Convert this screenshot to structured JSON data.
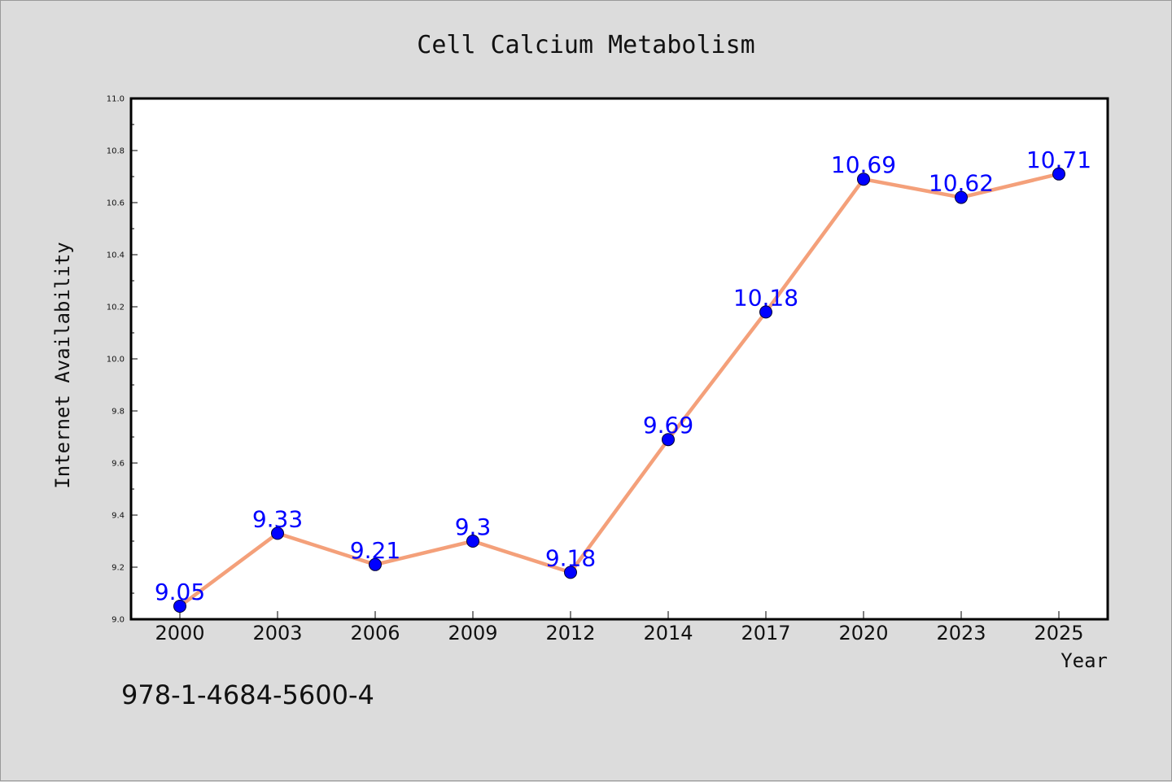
{
  "chart_data": {
    "type": "line",
    "title": "Cell Calcium Metabolism",
    "xlabel": "Year",
    "ylabel": "Internet Availability",
    "categories": [
      "2000",
      "2003",
      "2006",
      "2009",
      "2012",
      "2014",
      "2017",
      "2020",
      "2023",
      "2025"
    ],
    "series": [
      {
        "values": [
          9.05,
          9.33,
          9.21,
          9.3,
          9.18,
          9.69,
          10.18,
          10.69,
          10.62,
          10.71
        ],
        "labels": [
          "9.05",
          "9.33",
          "9.21",
          "9.3",
          "9.18",
          "9.69",
          "10.18",
          "10.69",
          "10.62",
          "10.71"
        ],
        "line_color": "#f4a07a",
        "marker_color": "#0000ff"
      }
    ],
    "ylim": [
      9.0,
      11.0
    ],
    "yticks": [
      "9.0",
      "9.2",
      "9.4",
      "9.6",
      "9.8",
      "10.0",
      "10.2",
      "10.4",
      "10.6",
      "10.8",
      "11.0"
    ],
    "grid": false,
    "legend": "none"
  },
  "footer": {
    "isbn": "978-1-4684-5600-4"
  },
  "colors": {
    "background": "#dcdcdc",
    "plot_background": "#ffffff",
    "line": "#f4a07a",
    "marker": "#0000ff",
    "data_label": "#0000ff"
  }
}
